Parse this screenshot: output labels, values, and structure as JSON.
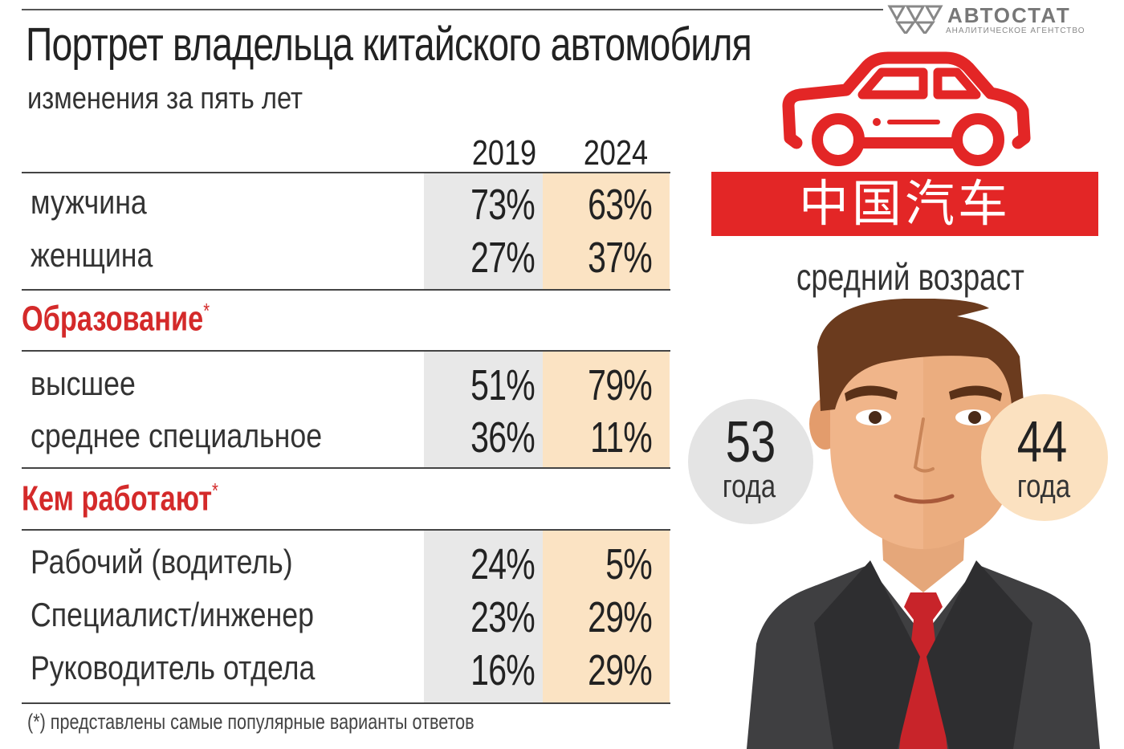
{
  "logo": {
    "name": "АВТОСТАТ",
    "subtitle": "АНАЛИТИЧЕСКОЕ АГЕНТСТВО"
  },
  "title": "Портрет владельца китайского автомобиля",
  "subtitle": "изменения за пять лет",
  "years": [
    "2019",
    "2024"
  ],
  "gender": [
    {
      "label": "мужчина",
      "v2019": "73%",
      "v2024": "63%"
    },
    {
      "label": "женщина",
      "v2019": "27%",
      "v2024": "37%"
    }
  ],
  "education": {
    "heading": "Образование",
    "asterisk": "*",
    "rows": [
      {
        "label": "высшее",
        "v2019": "51%",
        "v2024": "79%"
      },
      {
        "label": "среднее специальное",
        "v2019": "36%",
        "v2024": "11%"
      }
    ]
  },
  "work": {
    "heading": "Кем работают",
    "asterisk": "*",
    "rows": [
      {
        "label": "Рабочий (водитель)",
        "v2019": "24%",
        "v2024": "5%"
      },
      {
        "label": "Специалист/инженер",
        "v2019": "23%",
        "v2024": "29%"
      },
      {
        "label": "Руководитель отдела",
        "v2019": "16%",
        "v2024": "29%"
      }
    ]
  },
  "footnote": "(*) представлены самые популярные варианты ответов",
  "banner": "中国汽车",
  "average_age": {
    "label": "средний возраст",
    "age2019": "53",
    "age2024": "44",
    "unit": "года"
  },
  "colors": {
    "accent_red": "#e32626",
    "col2019": "#e8e8e8",
    "col2024": "#fbe3c3"
  },
  "icons": [
    "car-icon",
    "man-portrait-illustration",
    "autostat-logo-icon"
  ]
}
